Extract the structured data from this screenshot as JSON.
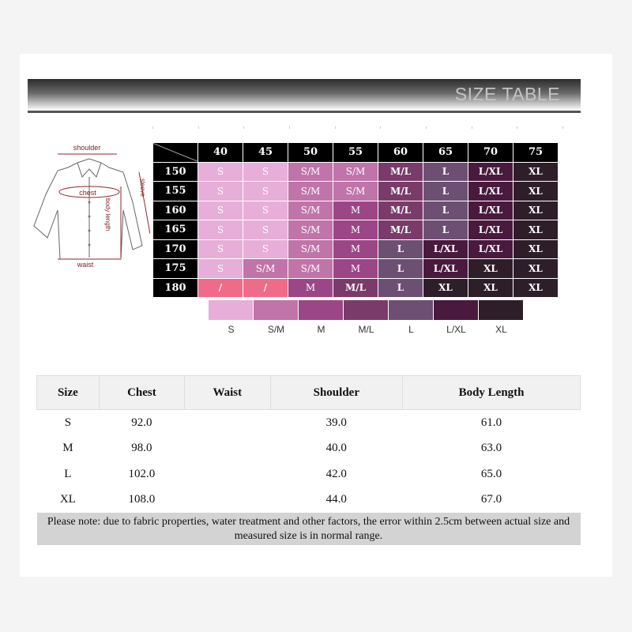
{
  "header": {
    "title": "SIZE TABLE"
  },
  "diagram": {
    "labels": {
      "shoulder": "shoulder",
      "chest": "chest",
      "sleeve": "sleeve",
      "body_length": "body length",
      "waist": "waist"
    }
  },
  "colors": {
    "S": "#e6aed8",
    "S/M": "#c074a9",
    "M": "#9b4686",
    "M/L": "#7a3b6b",
    "L": "#6e4f74",
    "L/XL": "#4a193e",
    "XL": "#2e1e29",
    "/": "#ef6b88"
  },
  "size_grid": {
    "columns": [
      "40",
      "45",
      "50",
      "55",
      "60",
      "65",
      "70",
      "75"
    ],
    "rows": [
      {
        "label": "150",
        "cells": [
          "S",
          "S",
          "S/M",
          "S/M",
          "M/L",
          "L",
          "L/XL",
          "XL"
        ]
      },
      {
        "label": "155",
        "cells": [
          "S",
          "S",
          "S/M",
          "S/M",
          "M/L",
          "L",
          "L/XL",
          "XL"
        ]
      },
      {
        "label": "160",
        "cells": [
          "S",
          "S",
          "S/M",
          "M",
          "M/L",
          "L",
          "L/XL",
          "XL"
        ]
      },
      {
        "label": "165",
        "cells": [
          "S",
          "S",
          "S/M",
          "M",
          "M/L",
          "L",
          "L/XL",
          "XL"
        ]
      },
      {
        "label": "170",
        "cells": [
          "S",
          "S",
          "S/M",
          "M",
          "L",
          "L/XL",
          "L/XL",
          "XL"
        ]
      },
      {
        "label": "175",
        "cells": [
          "S",
          "S/M",
          "S/M",
          "M",
          "L",
          "L/XL",
          "XL",
          "XL"
        ]
      },
      {
        "label": "180",
        "cells": [
          "/",
          "/",
          "M",
          "M/L",
          "L",
          "XL",
          "XL",
          "XL"
        ]
      }
    ]
  },
  "legend": [
    "S",
    "S/M",
    "M",
    "M/L",
    "L",
    "L/XL",
    "XL"
  ],
  "measure_table": {
    "headers": [
      "Size",
      "Chest",
      "Waist",
      "Shoulder",
      "Body Length"
    ],
    "rows": [
      [
        "S",
        "92.0",
        "",
        "39.0",
        "61.0"
      ],
      [
        "M",
        "98.0",
        "",
        "40.0",
        "63.0"
      ],
      [
        "L",
        "102.0",
        "",
        "42.0",
        "65.0"
      ],
      [
        "XL",
        "108.0",
        "",
        "44.0",
        "67.0"
      ]
    ],
    "note": "Please note: due to fabric properties, water treatment and other factors, the error within 2.5cm between actual size and measured size is in normal range."
  }
}
